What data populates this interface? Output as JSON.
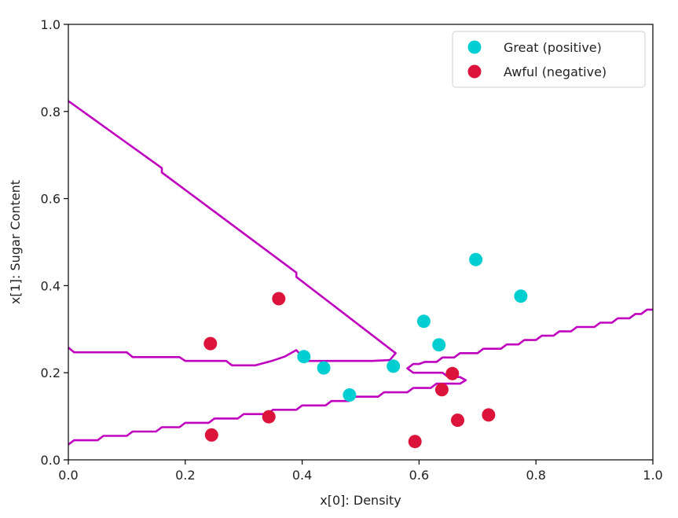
{
  "chart_data": {
    "type": "scatter",
    "title": "",
    "xlabel": "x[0]: Density",
    "ylabel": "x[1]: Sugar Content",
    "xlim": [
      0.0,
      1.0
    ],
    "ylim": [
      0.0,
      1.0
    ],
    "xticks": [
      "0.0",
      "0.2",
      "0.4",
      "0.6",
      "0.8",
      "1.0"
    ],
    "yticks": [
      "0.0",
      "0.2",
      "0.4",
      "0.6",
      "0.8",
      "1.0"
    ],
    "grid": false,
    "legend": {
      "position": "top-right",
      "entries": [
        "Great (positive)",
        "Awful (negative)"
      ]
    },
    "series": [
      {
        "name": "Great (positive)",
        "color": "#00CED1",
        "points": [
          {
            "x": 0.403,
            "y": 0.237
          },
          {
            "x": 0.437,
            "y": 0.211
          },
          {
            "x": 0.481,
            "y": 0.149
          },
          {
            "x": 0.556,
            "y": 0.215
          },
          {
            "x": 0.608,
            "y": 0.318
          },
          {
            "x": 0.634,
            "y": 0.264
          },
          {
            "x": 0.697,
            "y": 0.46
          },
          {
            "x": 0.774,
            "y": 0.376
          }
        ]
      },
      {
        "name": "Awful (negative)",
        "color": "#DC143C",
        "points": [
          {
            "x": 0.243,
            "y": 0.267
          },
          {
            "x": 0.245,
            "y": 0.057
          },
          {
            "x": 0.343,
            "y": 0.099
          },
          {
            "x": 0.36,
            "y": 0.37
          },
          {
            "x": 0.593,
            "y": 0.042
          },
          {
            "x": 0.639,
            "y": 0.161
          },
          {
            "x": 0.657,
            "y": 0.198
          },
          {
            "x": 0.666,
            "y": 0.091
          },
          {
            "x": 0.719,
            "y": 0.103
          }
        ]
      }
    ],
    "decision_boundary": {
      "color": "#BF00BF",
      "segments": [
        [
          [
            0.0,
            0.824
          ],
          [
            0.16,
            0.67
          ],
          [
            0.16,
            0.66
          ],
          [
            0.39,
            0.43
          ],
          [
            0.39,
            0.42
          ],
          [
            0.56,
            0.245
          ],
          [
            0.55,
            0.229
          ],
          [
            0.52,
            0.227
          ],
          [
            0.41,
            0.227
          ],
          [
            0.4,
            0.237
          ],
          [
            0.39,
            0.252
          ],
          [
            0.37,
            0.237
          ],
          [
            0.35,
            0.228
          ],
          [
            0.32,
            0.217
          ],
          [
            0.28,
            0.217
          ],
          [
            0.27,
            0.227
          ],
          [
            0.2,
            0.227
          ],
          [
            0.19,
            0.236
          ],
          [
            0.11,
            0.236
          ],
          [
            0.1,
            0.247
          ],
          [
            0.01,
            0.247
          ],
          [
            0.0,
            0.258
          ]
        ],
        [
          [
            0.0,
            0.035
          ],
          [
            0.01,
            0.045
          ],
          [
            0.05,
            0.045
          ],
          [
            0.06,
            0.055
          ],
          [
            0.1,
            0.055
          ],
          [
            0.11,
            0.065
          ],
          [
            0.15,
            0.065
          ],
          [
            0.16,
            0.075
          ],
          [
            0.19,
            0.075
          ],
          [
            0.2,
            0.085
          ],
          [
            0.24,
            0.085
          ],
          [
            0.25,
            0.095
          ],
          [
            0.29,
            0.095
          ],
          [
            0.3,
            0.105
          ],
          [
            0.34,
            0.105
          ],
          [
            0.35,
            0.115
          ],
          [
            0.39,
            0.115
          ],
          [
            0.4,
            0.125
          ],
          [
            0.44,
            0.125
          ],
          [
            0.45,
            0.135
          ],
          [
            0.48,
            0.135
          ],
          [
            0.49,
            0.145
          ],
          [
            0.53,
            0.145
          ],
          [
            0.54,
            0.155
          ],
          [
            0.58,
            0.155
          ],
          [
            0.59,
            0.165
          ],
          [
            0.62,
            0.165
          ],
          [
            0.63,
            0.175
          ],
          [
            0.67,
            0.175
          ],
          [
            0.68,
            0.183
          ],
          [
            0.67,
            0.19
          ],
          [
            0.65,
            0.19
          ],
          [
            0.64,
            0.2
          ],
          [
            0.59,
            0.2
          ],
          [
            0.58,
            0.21
          ],
          [
            0.59,
            0.22
          ],
          [
            0.6,
            0.22
          ],
          [
            0.61,
            0.225
          ],
          [
            0.63,
            0.225
          ],
          [
            0.64,
            0.235
          ],
          [
            0.66,
            0.235
          ],
          [
            0.67,
            0.245
          ],
          [
            0.7,
            0.245
          ],
          [
            0.71,
            0.255
          ],
          [
            0.74,
            0.255
          ],
          [
            0.75,
            0.265
          ],
          [
            0.77,
            0.265
          ],
          [
            0.78,
            0.275
          ],
          [
            0.8,
            0.275
          ],
          [
            0.81,
            0.285
          ],
          [
            0.83,
            0.285
          ],
          [
            0.84,
            0.295
          ],
          [
            0.86,
            0.295
          ],
          [
            0.87,
            0.305
          ],
          [
            0.9,
            0.305
          ],
          [
            0.91,
            0.315
          ],
          [
            0.93,
            0.315
          ],
          [
            0.94,
            0.325
          ],
          [
            0.96,
            0.325
          ],
          [
            0.97,
            0.335
          ],
          [
            0.98,
            0.335
          ],
          [
            0.99,
            0.345
          ],
          [
            1.0,
            0.345
          ]
        ]
      ]
    }
  }
}
